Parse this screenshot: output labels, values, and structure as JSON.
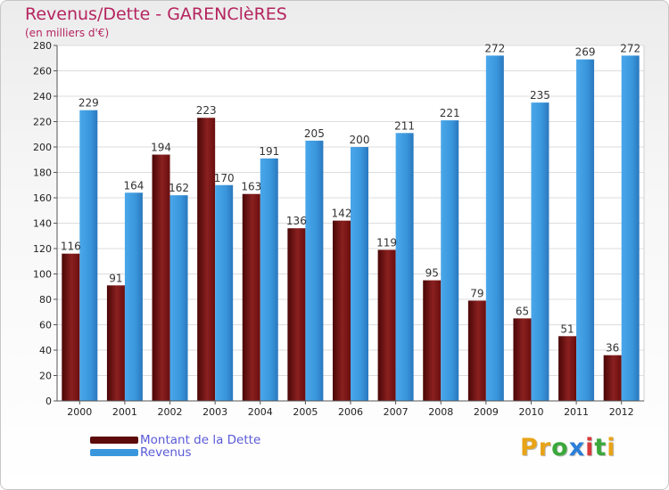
{
  "header": {
    "title": "Revenus/Dette - GARENClèRES",
    "subtitle": "(en milliers d'€)"
  },
  "chart_data": {
    "type": "bar",
    "categories": [
      "2000",
      "2001",
      "2002",
      "2003",
      "2004",
      "2005",
      "2006",
      "2007",
      "2008",
      "2009",
      "2010",
      "2011",
      "2012"
    ],
    "series": [
      {
        "name": "Montant de la Dette",
        "color": "#7a1414",
        "values": [
          116,
          91,
          194,
          223,
          163,
          136,
          142,
          119,
          95,
          79,
          65,
          51,
          36
        ]
      },
      {
        "name": "Revenus",
        "color": "#3a96dc",
        "values": [
          229,
          164,
          162,
          170,
          191,
          205,
          200,
          211,
          221,
          272,
          235,
          269,
          272
        ]
      }
    ],
    "ylim": [
      0,
      280
    ],
    "yticks": [
      0,
      20,
      40,
      60,
      80,
      100,
      120,
      140,
      160,
      180,
      200,
      220,
      240,
      260,
      280
    ],
    "grid": true,
    "legend": "bottom-left"
  },
  "legend": {
    "items": [
      {
        "label": "Montant de la Dette",
        "color": "#5c0a0a"
      },
      {
        "label": "Revenus",
        "color": "#3a96dc"
      }
    ]
  },
  "brand": {
    "letters": [
      "P",
      "r",
      "o",
      "x",
      "i",
      "t",
      "i"
    ],
    "colors": [
      "#e8a317",
      "#e8a317",
      "#3aa83a",
      "#2a7fd8",
      "#d83a3a",
      "#3aa83a",
      "#e8a317"
    ]
  }
}
